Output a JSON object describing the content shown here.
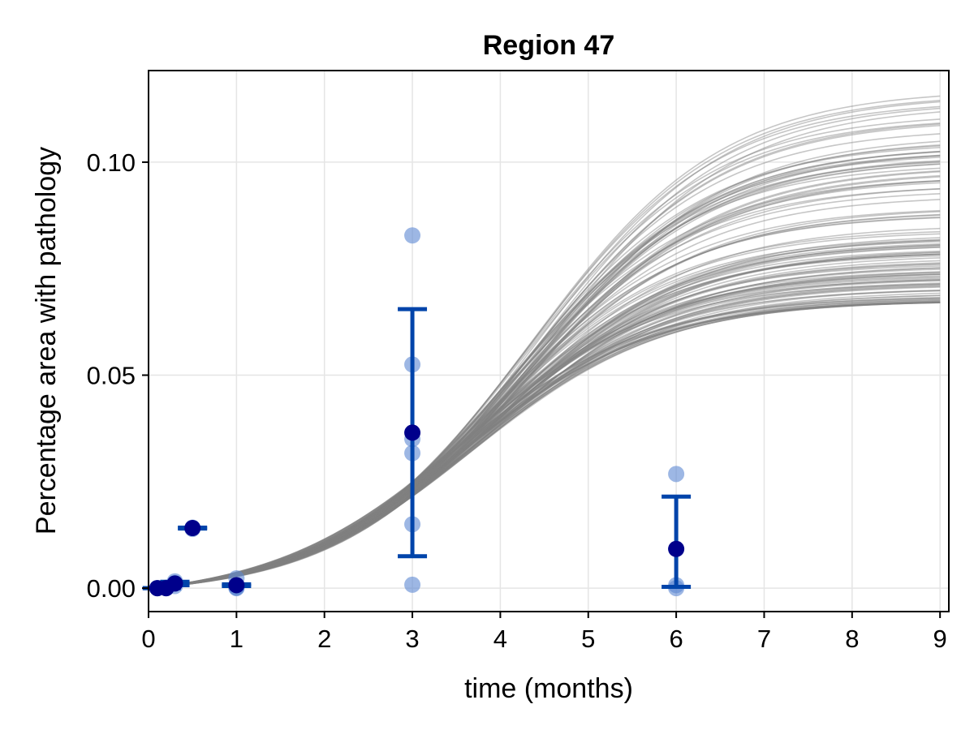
{
  "chart_data": {
    "type": "scatter",
    "title": "Region 47",
    "xlabel": "time (months)",
    "ylabel": "Percentage area with pathology",
    "xlim": [
      0,
      9.1
    ],
    "ylim": [
      -0.0055,
      0.1215
    ],
    "x_ticks": [
      0,
      1,
      2,
      3,
      4,
      5,
      6,
      7,
      8,
      9
    ],
    "y_ticks": [
      0.0,
      0.05,
      0.1
    ],
    "x_tick_labels": [
      "0",
      "1",
      "2",
      "3",
      "4",
      "5",
      "6",
      "7",
      "8",
      "9"
    ],
    "y_tick_labels": [
      "0.00",
      "0.05",
      "0.10"
    ],
    "grid": true,
    "colors": {
      "observation": "#5b87d2",
      "mean": "#00008b",
      "errorbar": "#0044aa",
      "model_curves": "#808080",
      "grid": "#e5e5e5"
    },
    "observations": [
      {
        "x": 0.1,
        "values": [
          0.0,
          0.0,
          0.0,
          0.0
        ]
      },
      {
        "x": 0.2,
        "values": [
          0.0,
          0.0,
          0.0001,
          0.0
        ]
      },
      {
        "x": 0.3,
        "values": [
          0.0005,
          0.0016,
          0.0012
        ]
      },
      {
        "x": 0.5,
        "values": [
          0.0139,
          0.0141,
          0.0142
        ]
      },
      {
        "x": 1.0,
        "values": [
          0.0,
          0.0001,
          0.0023,
          0.0003
        ]
      },
      {
        "x": 3.0,
        "values": [
          0.0828,
          0.0525,
          0.035,
          0.0317,
          0.015,
          0.0008
        ]
      },
      {
        "x": 6.0,
        "values": [
          0.0268,
          0.0092,
          0.0007,
          0.0
        ]
      }
    ],
    "means": [
      {
        "x": 0.1,
        "mean": 0.0,
        "lower": 0.0,
        "upper": 0.0
      },
      {
        "x": 0.2,
        "mean": 0.0,
        "lower": 0.0,
        "upper": 0.0
      },
      {
        "x": 0.3,
        "mean": 0.0011,
        "lower": 0.0007,
        "upper": 0.0015
      },
      {
        "x": 0.5,
        "mean": 0.0141,
        "lower": 0.014,
        "upper": 0.0142
      },
      {
        "x": 1.0,
        "mean": 0.0007,
        "lower": 0.0005,
        "upper": 0.0009
      },
      {
        "x": 3.0,
        "mean": 0.0365,
        "lower": 0.0075,
        "upper": 0.0655
      },
      {
        "x": 6.0,
        "mean": 0.0092,
        "lower": 0.0003,
        "upper": 0.0215
      }
    ],
    "model_curves": {
      "count": 120,
      "shape": "logistic",
      "x_range": [
        0,
        9
      ],
      "value_at_3_months_range": [
        0.0215,
        0.025
      ],
      "value_at_9_months_range": [
        0.067,
        0.116
      ],
      "opacity": 0.45
    }
  }
}
